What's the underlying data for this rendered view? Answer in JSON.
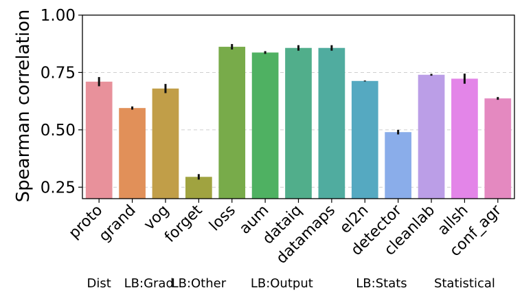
{
  "chart_data": {
    "type": "bar",
    "title": "",
    "xlabel": "",
    "ylabel": "Spearman correlation",
    "ylim": [
      0.2,
      1.0
    ],
    "yticks": [
      0.25,
      0.5,
      0.75,
      1.0
    ],
    "ytick_labels": [
      "0.25",
      "0.50",
      "0.75",
      "1.00"
    ],
    "grid": "horizontal-dashed",
    "categories": [
      "proto",
      "grand",
      "vog",
      "forget",
      "loss",
      "aum",
      "dataiq",
      "datamaps",
      "el2n",
      "detector",
      "cleanlab",
      "allsh",
      "conf_agr"
    ],
    "values": [
      0.71,
      0.595,
      0.68,
      0.295,
      0.862,
      0.837,
      0.857,
      0.857,
      0.713,
      0.49,
      0.74,
      0.723,
      0.637
    ],
    "errors": [
      0.02,
      0.007,
      0.02,
      0.012,
      0.012,
      0.006,
      0.012,
      0.012,
      0.002,
      0.01,
      0.004,
      0.022,
      0.006
    ],
    "colors": [
      "#e8919b",
      "#e19059",
      "#c19e48",
      "#a0a340",
      "#78ab4a",
      "#4fb162",
      "#51ae8b",
      "#50ac9f",
      "#55a9c1",
      "#8aadea",
      "#bb9ee7",
      "#e385e8",
      "#e489c0"
    ],
    "group_labels": [
      {
        "text": "Dist",
        "from": 0,
        "to": 0
      },
      {
        "text": "LB:Grad",
        "from": 1,
        "to": 2
      },
      {
        "text": "LB:Other",
        "from": 3,
        "to": 3
      },
      {
        "text": "LB:Output",
        "from": 4,
        "to": 7
      },
      {
        "text": "LB:Stats",
        "from": 8,
        "to": 9
      },
      {
        "text": "Statistical",
        "from": 10,
        "to": 12
      }
    ]
  }
}
